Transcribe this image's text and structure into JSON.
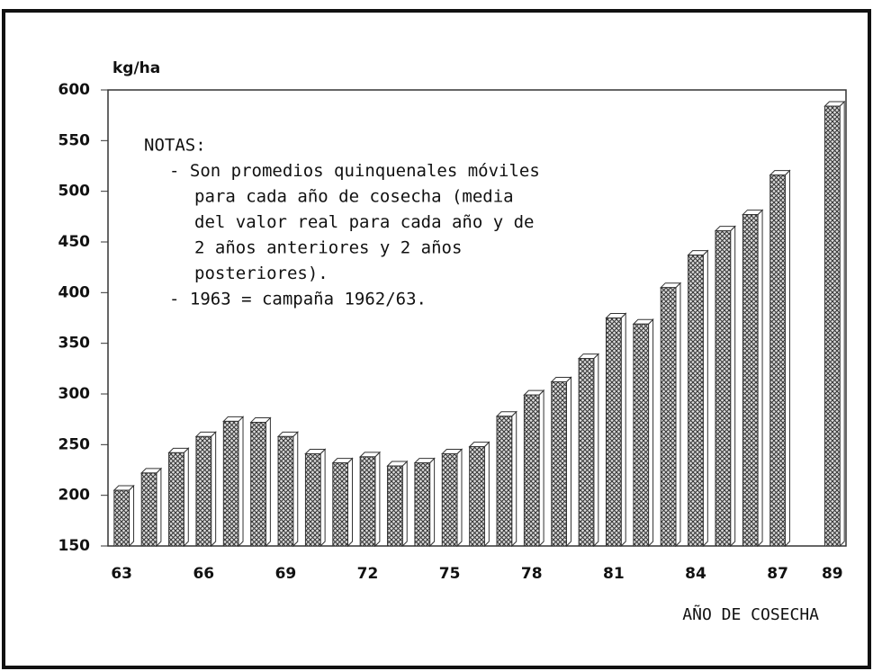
{
  "chart_data": {
    "type": "bar",
    "y_label": "kg/ha",
    "x_label": "AÑO DE COSECHA",
    "notes": [
      "NOTAS:",
      "- Son promedios quinquenales móviles",
      "para cada año de cosecha (media",
      "del valor real para cada año y de",
      "2 años anteriores y 2 años",
      "posteriores).",
      "- 1963 = campaña 1962/63."
    ],
    "categories": [
      "63",
      null,
      null,
      "66",
      null,
      null,
      "69",
      null,
      null,
      "72",
      null,
      null,
      "75",
      null,
      null,
      "78",
      null,
      null,
      "81",
      null,
      null,
      "84",
      null,
      null,
      "87",
      null,
      "89"
    ],
    "values": [
      205,
      222,
      242,
      258,
      273,
      272,
      258,
      241,
      232,
      238,
      229,
      232,
      241,
      248,
      278,
      299,
      312,
      335,
      375,
      369,
      405,
      437,
      461,
      477,
      516,
      null,
      584
    ],
    "ylim": [
      150,
      600
    ],
    "yticks": [
      150,
      200,
      250,
      300,
      350,
      400,
      450,
      500,
      550,
      600
    ]
  }
}
